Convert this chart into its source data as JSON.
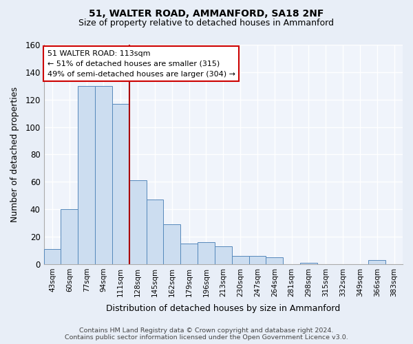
{
  "title1": "51, WALTER ROAD, AMMANFORD, SA18 2NF",
  "title2": "Size of property relative to detached houses in Ammanford",
  "xlabel": "Distribution of detached houses by size in Ammanford",
  "ylabel": "Number of detached properties",
  "bin_labels": [
    "43sqm",
    "60sqm",
    "77sqm",
    "94sqm",
    "111sqm",
    "128sqm",
    "145sqm",
    "162sqm",
    "179sqm",
    "196sqm",
    "213sqm",
    "230sqm",
    "247sqm",
    "264sqm",
    "281sqm",
    "298sqm",
    "315sqm",
    "332sqm",
    "349sqm",
    "366sqm",
    "383sqm"
  ],
  "bar_heights": [
    11,
    40,
    130,
    130,
    117,
    61,
    47,
    29,
    15,
    16,
    13,
    6,
    6,
    5,
    0,
    1,
    0,
    0,
    0,
    3,
    0
  ],
  "bar_color": "#ccddf0",
  "bar_edge_color": "#5588bb",
  "vline_x": 4.5,
  "vline_color": "#aa0000",
  "annotation_line1": "51 WALTER ROAD: 113sqm",
  "annotation_line2": "← 51% of detached houses are smaller (315)",
  "annotation_line3": "49% of semi-detached houses are larger (304) →",
  "annotation_box_color": "white",
  "annotation_box_edge": "#cc0000",
  "ylim": [
    0,
    160
  ],
  "yticks": [
    0,
    20,
    40,
    60,
    80,
    100,
    120,
    140,
    160
  ],
  "footer": "Contains HM Land Registry data © Crown copyright and database right 2024.\nContains public sector information licensed under the Open Government Licence v3.0.",
  "bg_color": "#e8eef7",
  "plot_bg_color": "#f0f4fb"
}
